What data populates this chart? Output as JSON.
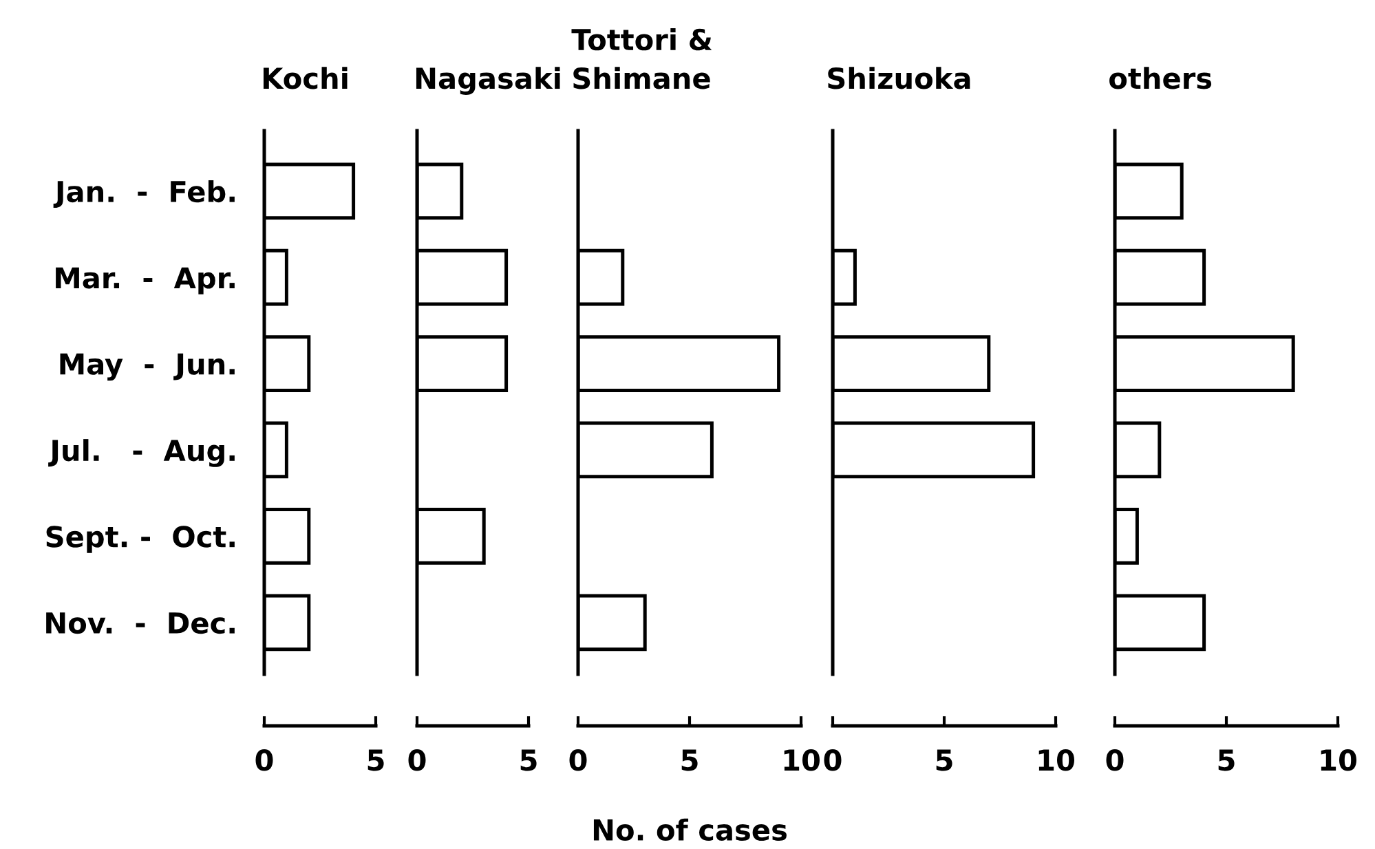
{
  "chart_data": [
    {
      "type": "bar",
      "orientation": "horizontal",
      "title": "Kochi",
      "categories": [
        "Jan.  -  Feb.",
        "Mar.  -  Apr.",
        "May  -  Jun.",
        "Jul.   -  Aug.",
        "Sept. -  Oct.",
        "Nov.  -  Dec."
      ],
      "values": [
        4,
        1,
        2,
        1,
        2,
        2
      ],
      "color": "#ffffff",
      "xlim": [
        0,
        5
      ],
      "xticks": [
        0,
        5
      ],
      "grid": false
    },
    {
      "type": "bar",
      "orientation": "horizontal",
      "title": "Nagasaki",
      "categories": [
        null,
        null,
        null,
        null,
        null,
        null
      ],
      "values": [
        2,
        4,
        4,
        null,
        3,
        null
      ],
      "color": "#ffffff",
      "xlim": [
        0,
        5
      ],
      "xticks": [
        0,
        5
      ],
      "tick_labels": "x",
      "grid": false
    },
    {
      "type": "bar",
      "orientation": "horizontal",
      "title": "Tottori &\nShimane",
      "xlabel": "No. of cases",
      "categories": [
        null,
        null,
        null,
        null,
        null,
        null
      ],
      "values": [
        null,
        2,
        9,
        6,
        null,
        3
      ],
      "color": "#ffffff",
      "xlim": [
        0,
        10
      ],
      "xticks": [
        0,
        5,
        10
      ],
      "tick_labels": "x",
      "grid": false
    },
    {
      "type": "bar",
      "orientation": "horizontal",
      "title": "Shizuoka",
      "categories": [
        null,
        null,
        null,
        null,
        null,
        null
      ],
      "values": [
        null,
        1,
        7,
        9,
        null,
        null
      ],
      "color": "#ffffff",
      "xlim": [
        0,
        10
      ],
      "xticks": [
        0,
        5,
        10
      ],
      "tick_labels": "x",
      "grid": false
    },
    {
      "type": "bar",
      "orientation": "horizontal",
      "title": "others",
      "categories": [
        null,
        null,
        null,
        null,
        null,
        null
      ],
      "values": [
        3,
        4,
        8,
        2,
        1,
        4
      ],
      "color": "#ffffff",
      "xlim": [
        0,
        10
      ],
      "xticks": [
        0,
        5,
        10
      ],
      "tick_labels": "x",
      "grid": false
    }
  ]
}
